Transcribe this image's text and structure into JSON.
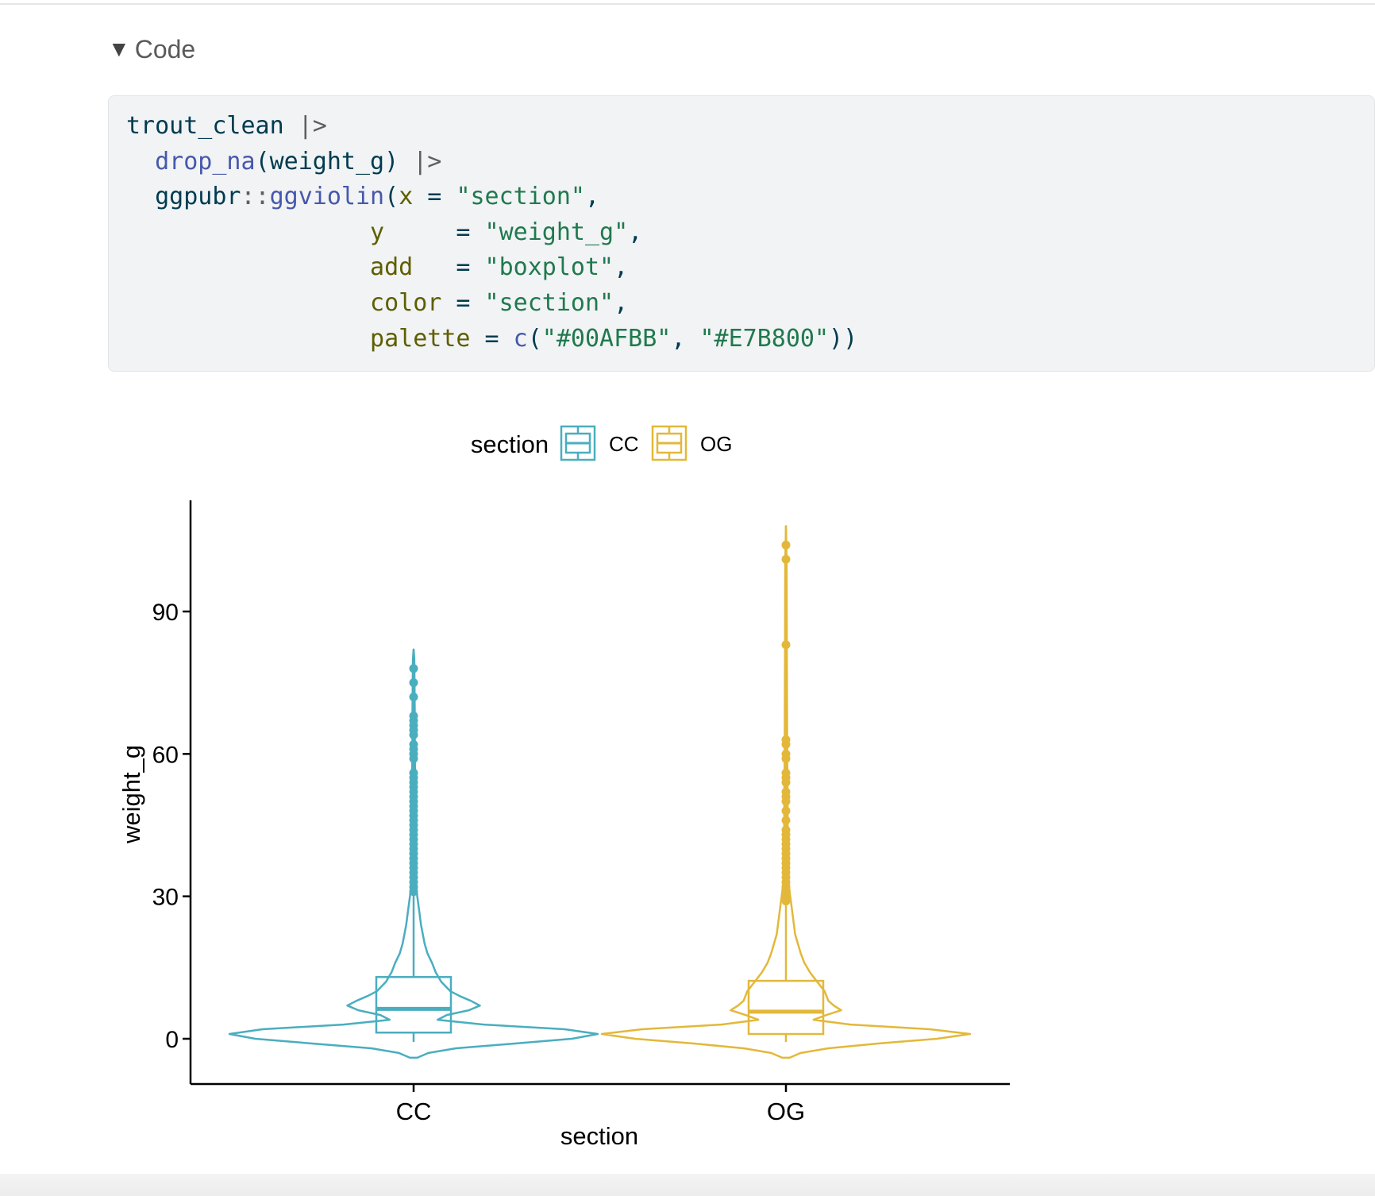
{
  "code_toggle": {
    "icon": "triangle-down-icon",
    "label": "Code"
  },
  "code": {
    "lines": [
      [
        [
          "plain",
          "trout_clean "
        ],
        [
          "op",
          "|>"
        ]
      ],
      [
        [
          "plain",
          "  "
        ],
        [
          "fn",
          "drop_na"
        ],
        [
          "plain",
          "(weight_g) "
        ],
        [
          "op",
          "|>"
        ]
      ],
      [
        [
          "plain",
          "  ggpubr"
        ],
        [
          "op",
          "::"
        ],
        [
          "fn",
          "ggviolin"
        ],
        [
          "plain",
          "("
        ],
        [
          "arg",
          "x"
        ],
        [
          "plain",
          " = "
        ],
        [
          "str",
          "\"section\""
        ],
        [
          "plain",
          ","
        ]
      ],
      [
        [
          "plain",
          "                 "
        ],
        [
          "arg",
          "y"
        ],
        [
          "plain",
          "     = "
        ],
        [
          "str",
          "\"weight_g\""
        ],
        [
          "plain",
          ","
        ]
      ],
      [
        [
          "plain",
          "                 "
        ],
        [
          "arg",
          "add"
        ],
        [
          "plain",
          "   = "
        ],
        [
          "str",
          "\"boxplot\""
        ],
        [
          "plain",
          ","
        ]
      ],
      [
        [
          "plain",
          "                 "
        ],
        [
          "arg",
          "color"
        ],
        [
          "plain",
          " = "
        ],
        [
          "str",
          "\"section\""
        ],
        [
          "plain",
          ","
        ]
      ],
      [
        [
          "plain",
          "                 "
        ],
        [
          "arg",
          "palette"
        ],
        [
          "plain",
          " = "
        ],
        [
          "fn",
          "c"
        ],
        [
          "plain",
          "("
        ],
        [
          "str",
          "\"#00AFBB\""
        ],
        [
          "plain",
          ", "
        ],
        [
          "str",
          "\"#E7B800\""
        ],
        [
          "plain",
          "))"
        ]
      ]
    ]
  },
  "colors": {
    "CC": "#4aaebf",
    "OG": "#e3b83a",
    "axis": "#000000"
  },
  "chart_data": {
    "type": "violin",
    "xlabel": "section",
    "ylabel": "weight_g",
    "categories": [
      "CC",
      "OG"
    ],
    "yticks": [
      0,
      30,
      60,
      90
    ],
    "ylim": [
      -9,
      113
    ],
    "legend": {
      "title": "section",
      "position": "top",
      "entries": [
        "CC",
        "OG"
      ]
    },
    "series": [
      {
        "name": "CC",
        "box": {
          "q1": 1.3,
          "median": 6.3,
          "q3": 13.0,
          "whisker_low": 0,
          "whisker_high": 31
        },
        "violin_max": 82,
        "outliers": [
          31,
          32,
          33,
          34,
          35,
          36,
          37,
          38,
          39,
          40,
          41,
          42,
          43,
          44,
          45,
          46,
          47,
          48,
          49,
          50,
          51,
          52,
          53,
          54,
          55,
          56,
          59,
          60,
          61,
          62,
          64,
          65,
          66,
          67,
          68,
          72,
          75,
          78
        ],
        "density": [
          [
            -4,
            0.02
          ],
          [
            -3,
            0.08
          ],
          [
            -2,
            0.23
          ],
          [
            -1,
            0.55
          ],
          [
            0,
            0.86
          ],
          [
            1,
            1.0
          ],
          [
            2,
            0.82
          ],
          [
            3,
            0.38
          ],
          [
            4,
            0.13
          ],
          [
            5,
            0.18
          ],
          [
            6,
            0.3
          ],
          [
            7,
            0.36
          ],
          [
            8,
            0.31
          ],
          [
            9,
            0.25
          ],
          [
            10,
            0.2
          ],
          [
            12,
            0.15
          ],
          [
            14,
            0.12
          ],
          [
            16,
            0.1
          ],
          [
            18,
            0.075
          ],
          [
            20,
            0.06
          ],
          [
            22,
            0.05
          ],
          [
            24,
            0.04
          ],
          [
            27,
            0.03
          ],
          [
            30,
            0.02
          ],
          [
            33,
            0.013
          ],
          [
            36,
            0.01
          ],
          [
            40,
            0.01
          ],
          [
            50,
            0.009
          ],
          [
            60,
            0.007
          ],
          [
            70,
            0.006
          ],
          [
            80,
            0.004
          ],
          [
            82,
            0.0
          ]
        ]
      },
      {
        "name": "OG",
        "box": {
          "q1": 1.0,
          "median": 5.7,
          "q3": 12.2,
          "whisker_low": 0,
          "whisker_high": 29
        },
        "violin_max": 108,
        "outliers": [
          29,
          30,
          31,
          32,
          33,
          34,
          35,
          36,
          37,
          38,
          39,
          40,
          41,
          42,
          43,
          44,
          46,
          48,
          50,
          51,
          52,
          54,
          55,
          56,
          59,
          60,
          62,
          63,
          83,
          101,
          104
        ],
        "density": [
          [
            -4,
            0.02
          ],
          [
            -3,
            0.08
          ],
          [
            -2,
            0.23
          ],
          [
            -1,
            0.5
          ],
          [
            0,
            0.82
          ],
          [
            1,
            1.0
          ],
          [
            2,
            0.78
          ],
          [
            3,
            0.35
          ],
          [
            4,
            0.15
          ],
          [
            5,
            0.22
          ],
          [
            6,
            0.3
          ],
          [
            7,
            0.26
          ],
          [
            8,
            0.23
          ],
          [
            10,
            0.21
          ],
          [
            12,
            0.17
          ],
          [
            14,
            0.13
          ],
          [
            16,
            0.1
          ],
          [
            18,
            0.08
          ],
          [
            20,
            0.065
          ],
          [
            22,
            0.05
          ],
          [
            25,
            0.04
          ],
          [
            28,
            0.03
          ],
          [
            31,
            0.02
          ],
          [
            34,
            0.013
          ],
          [
            40,
            0.01
          ],
          [
            50,
            0.009
          ],
          [
            60,
            0.007
          ],
          [
            80,
            0.005
          ],
          [
            100,
            0.004
          ],
          [
            108,
            0.0
          ]
        ]
      }
    ]
  }
}
